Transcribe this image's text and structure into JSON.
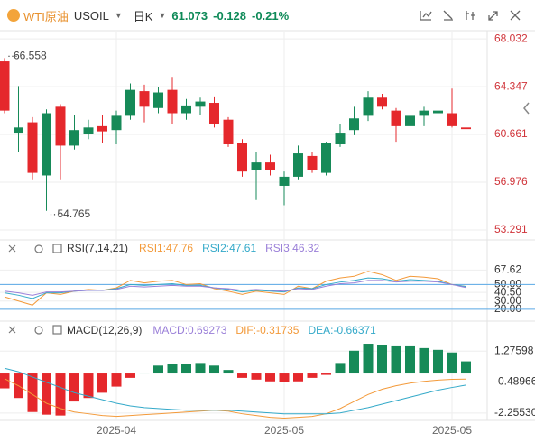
{
  "header": {
    "name": "WTI原油",
    "symbol": "USOIL",
    "period": "日K",
    "price": "61.073",
    "change": "-0.128",
    "change_pct": "-0.21%"
  },
  "chart_data": [
    {
      "type": "candlestick",
      "categories": [
        null,
        null,
        null,
        null,
        null,
        null,
        null,
        null,
        "2025-04",
        null,
        null,
        null,
        null,
        null,
        null,
        null,
        null,
        null,
        null,
        null,
        "2025-05",
        null,
        null,
        null,
        null,
        null,
        null,
        null,
        null,
        null,
        null,
        null,
        "2025-05",
        null
      ],
      "open": [
        66.3,
        60.8,
        61.6,
        57.5,
        62.8,
        59.8,
        60.7,
        61.3,
        61.0,
        62.1,
        64.0,
        62.7,
        64.1,
        62.3,
        62.8,
        63.1,
        61.8,
        60.0,
        57.9,
        58.5,
        56.7,
        57.4,
        59.0,
        57.7,
        59.9,
        61.0,
        62.1,
        63.5,
        62.5,
        61.3,
        62.1,
        62.3,
        62.3,
        61.2
      ],
      "high": [
        66.558,
        64.4,
        62.0,
        62.6,
        63.0,
        62.2,
        61.8,
        62.2,
        62.5,
        64.6,
        64.5,
        64.3,
        65.1,
        63.4,
        63.5,
        63.6,
        62.0,
        60.3,
        59.3,
        59.1,
        57.8,
        59.8,
        59.3,
        60.1,
        61.5,
        62.8,
        64.0,
        63.8,
        62.7,
        62.3,
        62.8,
        62.9,
        64.2,
        61.3
      ],
      "low": [
        62.3,
        59.3,
        57.2,
        54.765,
        57.2,
        59.5,
        60.3,
        60.0,
        59.9,
        61.8,
        61.6,
        62.3,
        61.5,
        61.8,
        62.2,
        61.2,
        59.7,
        57.4,
        55.6,
        57.5,
        55.2,
        57.2,
        57.7,
        57.5,
        59.7,
        60.6,
        61.7,
        62.6,
        60.1,
        60.9,
        61.3,
        61.9,
        61.2,
        61.0
      ],
      "close": [
        62.5,
        61.2,
        57.7,
        62.3,
        59.8,
        61.0,
        61.2,
        60.9,
        62.1,
        64.1,
        62.8,
        63.9,
        62.3,
        62.9,
        63.2,
        61.5,
        59.9,
        57.8,
        58.5,
        57.9,
        57.4,
        59.2,
        57.9,
        60.0,
        60.8,
        61.9,
        63.5,
        62.8,
        61.3,
        62.1,
        62.5,
        62.5,
        61.3,
        61.073
      ],
      "up_color": "#168a58",
      "down_color": "#e5282c",
      "ylim": [
        52.8,
        68.6
      ],
      "yticks": [
        68.032,
        64.347,
        60.661,
        56.976,
        53.291
      ],
      "max_label": 66.558,
      "min_label": 54.765
    },
    {
      "type": "line",
      "title": "RSI(7,14,21)",
      "series": [
        {
          "name": "RSI1:47.76",
          "color": "#f39a3a",
          "values": [
            35,
            30,
            25,
            40,
            38,
            42,
            44,
            43,
            46,
            55,
            52,
            54,
            55,
            50,
            51,
            45,
            42,
            38,
            42,
            40,
            38,
            48,
            45,
            54,
            58,
            60,
            66,
            62,
            55,
            60,
            59,
            57,
            50,
            47.76
          ]
        },
        {
          "name": "RSI2:47.61",
          "color": "#33a9c9",
          "values": [
            40,
            37,
            33,
            40,
            40,
            42,
            43,
            43,
            45,
            50,
            49,
            50,
            51,
            49,
            49,
            46,
            44,
            41,
            43,
            42,
            41,
            46,
            45,
            50,
            53,
            55,
            58,
            57,
            54,
            56,
            55,
            54,
            50,
            47.61
          ]
        },
        {
          "name": "RSI3:46.32",
          "color": "#9a7fd8",
          "values": [
            42,
            40,
            37,
            41,
            41,
            42,
            43,
            43,
            44,
            48,
            47,
            48,
            49,
            48,
            48,
            46,
            45,
            43,
            44,
            43,
            42,
            45,
            44,
            48,
            51,
            52,
            55,
            55,
            53,
            54,
            54,
            53,
            50,
            46.32
          ]
        }
      ],
      "ylim": [
        10,
        80
      ],
      "yticks": [
        67.62,
        {
          "value": 50,
          "label": "50.00"
        },
        {
          "value": 40.5,
          "label": "40.50"
        },
        {
          "value": 30,
          "label": "30.00"
        },
        {
          "value": 20,
          "label": "20.00"
        }
      ],
      "ref_lines": [
        50,
        20
      ],
      "ref_color": "#5aa9e6"
    },
    {
      "type": "combo",
      "title": "MACD(12,26,9)",
      "series": [
        {
          "name": "MACD:0.69273",
          "kind": "bar",
          "up_color": "#168a58",
          "down_color": "#e5282c",
          "color": "#9a7fd8",
          "values": [
            -0.85,
            -1.4,
            -2.2,
            -2.35,
            -2.4,
            -1.6,
            -1.4,
            -1.1,
            -0.75,
            -0.25,
            0.05,
            0.45,
            0.55,
            0.55,
            0.6,
            0.45,
            0.2,
            -0.25,
            -0.35,
            -0.45,
            -0.5,
            -0.45,
            -0.25,
            -0.08,
            0.6,
            1.3,
            1.7,
            1.65,
            1.55,
            1.55,
            1.45,
            1.35,
            1.2,
            0.69273
          ]
        },
        {
          "name": "DIF:-0.31735",
          "kind": "line",
          "color": "#f39a3a",
          "values": [
            -0.3,
            -0.7,
            -1.2,
            -1.7,
            -2.0,
            -2.2,
            -2.3,
            -2.4,
            -2.45,
            -2.4,
            -2.35,
            -2.3,
            -2.25,
            -2.2,
            -2.15,
            -2.1,
            -2.15,
            -2.3,
            -2.4,
            -2.5,
            -2.55,
            -2.5,
            -2.45,
            -2.3,
            -2.0,
            -1.6,
            -1.2,
            -0.9,
            -0.7,
            -0.55,
            -0.45,
            -0.38,
            -0.33,
            -0.31735
          ]
        },
        {
          "name": "DEA:-0.66371",
          "kind": "line",
          "color": "#33a9c9",
          "values": [
            0.3,
            0.1,
            -0.2,
            -0.5,
            -0.8,
            -1.1,
            -1.3,
            -1.5,
            -1.7,
            -1.85,
            -1.95,
            -2.0,
            -2.05,
            -2.1,
            -2.1,
            -2.1,
            -2.1,
            -2.15,
            -2.2,
            -2.25,
            -2.3,
            -2.3,
            -2.3,
            -2.3,
            -2.25,
            -2.1,
            -1.95,
            -1.75,
            -1.55,
            -1.35,
            -1.15,
            -0.95,
            -0.8,
            -0.66371
          ]
        }
      ],
      "ylim": [
        -3.14,
        2.68
      ],
      "yticks": [
        1.27598,
        -0.48966,
        {
          "value": -2.2553,
          "label": "-2.25530"
        }
      ]
    }
  ]
}
